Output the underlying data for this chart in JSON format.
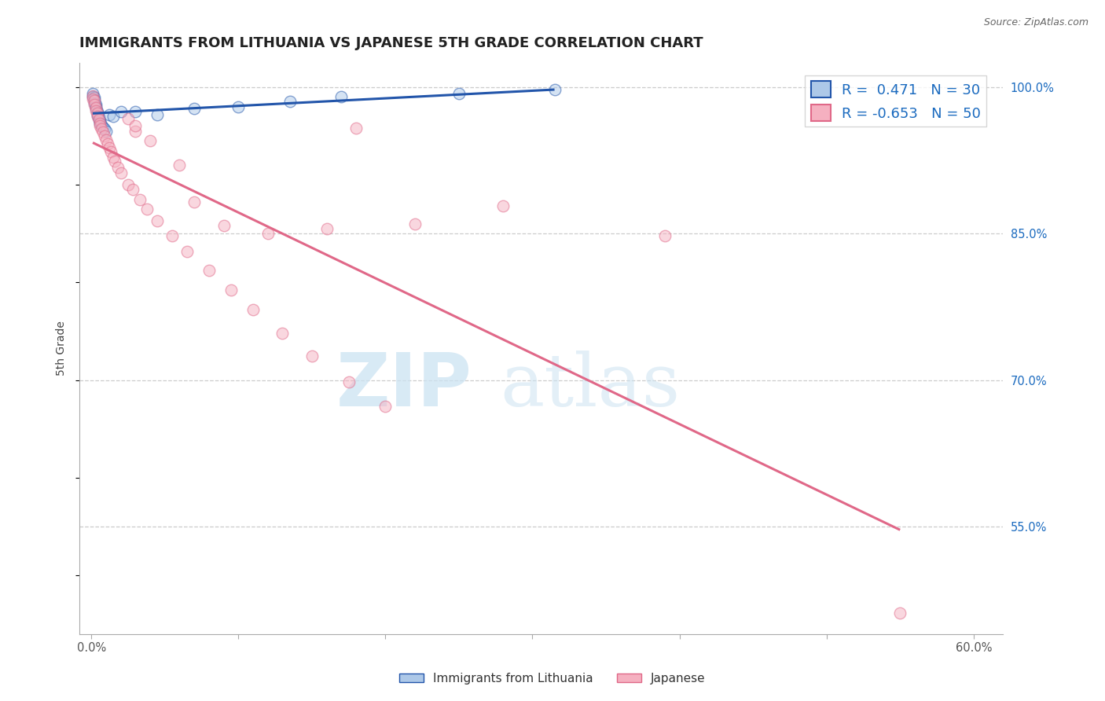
{
  "title": "IMMIGRANTS FROM LITHUANIA VS JAPANESE 5TH GRADE CORRELATION CHART",
  "source_text": "Source: ZipAtlas.com",
  "ylabel": "5th Grade",
  "watermark_zip": "ZIP",
  "watermark_atlas": "atlas",
  "xlim": [
    -0.008,
    0.62
  ],
  "ylim": [
    0.44,
    1.025
  ],
  "xtick_positions": [
    0.0,
    0.1,
    0.2,
    0.3,
    0.4,
    0.5,
    0.6
  ],
  "xticklabels": [
    "0.0%",
    "",
    "",
    "",
    "",
    "",
    "60.0%"
  ],
  "ytick_positions": [
    0.55,
    0.7,
    0.85,
    1.0
  ],
  "yticklabels_right": [
    "55.0%",
    "70.0%",
    "85.0%",
    "100.0%"
  ],
  "blue_R": "0.471",
  "blue_N": "30",
  "pink_R": "-0.653",
  "pink_N": "50",
  "blue_face_color": "#adc8e8",
  "blue_edge_color": "#2255aa",
  "blue_line_color": "#2255aa",
  "pink_face_color": "#f5b0c0",
  "pink_edge_color": "#e06888",
  "pink_line_color": "#e06888",
  "grid_color": "#cccccc",
  "title_color": "#222222",
  "source_color": "#666666",
  "tick_color_x": "#555555",
  "tick_color_y": "#1a6abf",
  "blue_scatter_x": [
    0.001,
    0.001,
    0.002,
    0.002,
    0.002,
    0.003,
    0.003,
    0.003,
    0.004,
    0.004,
    0.004,
    0.005,
    0.005,
    0.006,
    0.006,
    0.007,
    0.008,
    0.009,
    0.01,
    0.012,
    0.015,
    0.02,
    0.03,
    0.045,
    0.07,
    0.1,
    0.135,
    0.17,
    0.25,
    0.315
  ],
  "blue_scatter_y": [
    0.993,
    0.99,
    0.989,
    0.987,
    0.984,
    0.982,
    0.98,
    0.978,
    0.975,
    0.973,
    0.971,
    0.969,
    0.967,
    0.965,
    0.963,
    0.961,
    0.959,
    0.957,
    0.955,
    0.972,
    0.97,
    0.975,
    0.975,
    0.972,
    0.978,
    0.98,
    0.985,
    0.99,
    0.993,
    0.997
  ],
  "pink_scatter_x": [
    0.001,
    0.001,
    0.002,
    0.002,
    0.003,
    0.003,
    0.004,
    0.004,
    0.005,
    0.006,
    0.006,
    0.007,
    0.008,
    0.009,
    0.01,
    0.011,
    0.012,
    0.013,
    0.015,
    0.016,
    0.018,
    0.02,
    0.025,
    0.028,
    0.033,
    0.038,
    0.045,
    0.055,
    0.065,
    0.08,
    0.095,
    0.11,
    0.13,
    0.15,
    0.175,
    0.2,
    0.06,
    0.09,
    0.04,
    0.025,
    0.03,
    0.07,
    0.18,
    0.12,
    0.16,
    0.22,
    0.28,
    0.39,
    0.55,
    0.03
  ],
  "pink_scatter_y": [
    0.991,
    0.988,
    0.986,
    0.982,
    0.979,
    0.976,
    0.973,
    0.97,
    0.967,
    0.963,
    0.96,
    0.957,
    0.954,
    0.95,
    0.946,
    0.942,
    0.938,
    0.934,
    0.928,
    0.924,
    0.918,
    0.912,
    0.9,
    0.895,
    0.885,
    0.875,
    0.863,
    0.848,
    0.832,
    0.812,
    0.792,
    0.772,
    0.748,
    0.725,
    0.698,
    0.673,
    0.92,
    0.858,
    0.945,
    0.968,
    0.955,
    0.882,
    0.958,
    0.85,
    0.855,
    0.86,
    0.878,
    0.848,
    0.462,
    0.96
  ],
  "scatter_size": 110,
  "scatter_alpha": 0.5,
  "scatter_lw": 1.0,
  "trendline_lw": 2.2,
  "title_fontsize": 13,
  "tick_fontsize": 10.5,
  "ylabel_fontsize": 10,
  "legend_fontsize": 13,
  "legend_handle_size": 1.4
}
